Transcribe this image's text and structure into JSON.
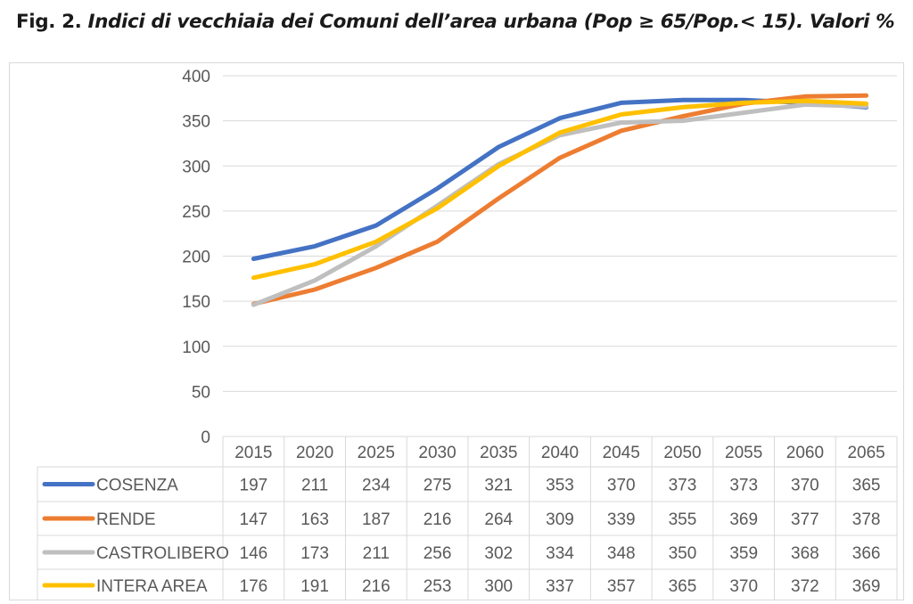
{
  "figure": {
    "title_lead": "Fig. 2.",
    "title_rest": " Indici di vecchiaia dei Comuni dell’area urbana (Pop ≥ 65/Pop.< 15).  Valori %"
  },
  "chart_data": {
    "type": "line",
    "title": "Fig. 2. Indici di vecchiaia dei Comuni dell’area urbana (Pop ≥ 65/Pop.< 15).  Valori %",
    "categories": [
      "2015",
      "2020",
      "2025",
      "2030",
      "2035",
      "2040",
      "2045",
      "2050",
      "2055",
      "2060",
      "2065"
    ],
    "ylim": [
      0,
      400
    ],
    "yticks": [
      0,
      50,
      100,
      150,
      200,
      250,
      300,
      350,
      400
    ],
    "grid": true,
    "legend": "data-table",
    "series": [
      {
        "name": "COSENZA",
        "color": "#4472c4",
        "values": [
          197,
          211,
          234,
          275,
          321,
          353,
          370,
          373,
          373,
          370,
          365
        ]
      },
      {
        "name": "RENDE",
        "color": "#ed7d31",
        "values": [
          147,
          163,
          187,
          216,
          264,
          309,
          339,
          355,
          369,
          377,
          378
        ]
      },
      {
        "name": "CASTROLIBERO",
        "color": "#bfbfbf",
        "values": [
          146,
          173,
          211,
          256,
          302,
          334,
          348,
          350,
          359,
          368,
          366
        ]
      },
      {
        "name": "INTERA AREA",
        "color": "#ffc000",
        "values": [
          176,
          191,
          216,
          253,
          300,
          337,
          357,
          365,
          370,
          372,
          369
        ]
      }
    ]
  }
}
